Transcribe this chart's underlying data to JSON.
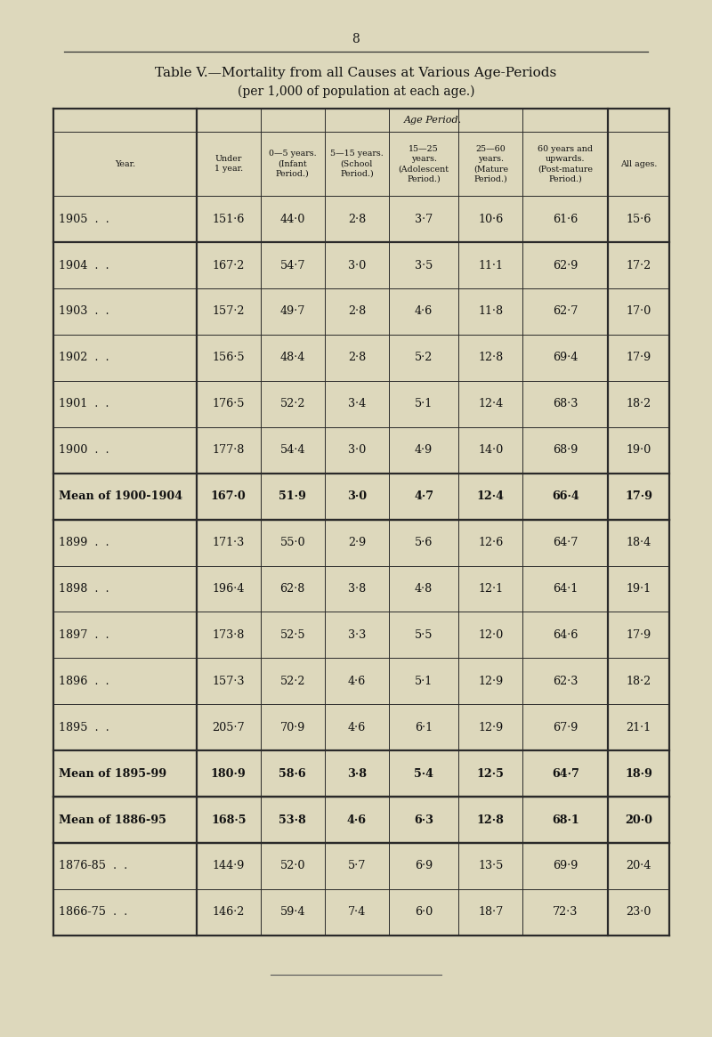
{
  "title_line1": "Table V.—Mortality from all Causes at Various Age-Periods",
  "title_line2": "(per 1,000 of population at each age.)",
  "page_number": "8",
  "bg_color": "#ddd8bc",
  "table_bg": "#e2ddc8",
  "rows": [
    {
      "year": "1905  .  .",
      "under1": "151·6",
      "y0_5": "44·0",
      "y5_15": "2·8",
      "y15_25": "3·7",
      "y25_60": "10·6",
      "y60": "61·6",
      "all": "15·6",
      "bold": false,
      "sep_above": "thick",
      "sep_below": "thin"
    },
    {
      "year": "1904  .  .",
      "under1": "167·2",
      "y0_5": "54·7",
      "y5_15": "3·0",
      "y15_25": "3·5",
      "y25_60": "11·1",
      "y60": "62·9",
      "all": "17·2",
      "bold": false,
      "sep_above": "thick",
      "sep_below": "thin"
    },
    {
      "year": "1903  .  .",
      "under1": "157·2",
      "y0_5": "49·7",
      "y5_15": "2·8",
      "y15_25": "4·6",
      "y25_60": "11·8",
      "y60": "62·7",
      "all": "17·0",
      "bold": false,
      "sep_above": "thin",
      "sep_below": "thin"
    },
    {
      "year": "1902  .  .",
      "under1": "156·5",
      "y0_5": "48·4",
      "y5_15": "2·8",
      "y15_25": "5·2",
      "y25_60": "12·8",
      "y60": "69·4",
      "all": "17·9",
      "bold": false,
      "sep_above": "thin",
      "sep_below": "thin"
    },
    {
      "year": "1901  .  .",
      "under1": "176·5",
      "y0_5": "52·2",
      "y5_15": "3·4",
      "y15_25": "5·1",
      "y25_60": "12·4",
      "y60": "68·3",
      "all": "18·2",
      "bold": false,
      "sep_above": "thin",
      "sep_below": "thin"
    },
    {
      "year": "1900  .  .",
      "under1": "177·8",
      "y0_5": "54·4",
      "y5_15": "3·0",
      "y15_25": "4·9",
      "y25_60": "14·0",
      "y60": "68·9",
      "all": "19·0",
      "bold": false,
      "sep_above": "thin",
      "sep_below": "thin"
    },
    {
      "year": "Mean of 1900-1904",
      "under1": "167·0",
      "y0_5": "51·9",
      "y5_15": "3·0",
      "y15_25": "4·7",
      "y25_60": "12·4",
      "y60": "66·4",
      "all": "17·9",
      "bold": true,
      "sep_above": "thick",
      "sep_below": "thick"
    },
    {
      "year": "1899  .  .",
      "under1": "171·3",
      "y0_5": "55·0",
      "y5_15": "2·9",
      "y15_25": "5·6",
      "y25_60": "12·6",
      "y60": "64·7",
      "all": "18·4",
      "bold": false,
      "sep_above": "thick",
      "sep_below": "thin"
    },
    {
      "year": "1898  .  .",
      "under1": "196·4",
      "y0_5": "62·8",
      "y5_15": "3·8",
      "y15_25": "4·8",
      "y25_60": "12·1",
      "y60": "64·1",
      "all": "19·1",
      "bold": false,
      "sep_above": "thin",
      "sep_below": "thin"
    },
    {
      "year": "1897  .  .",
      "under1": "173·8",
      "y0_5": "52·5",
      "y5_15": "3·3",
      "y15_25": "5·5",
      "y25_60": "12·0",
      "y60": "64·6",
      "all": "17·9",
      "bold": false,
      "sep_above": "thin",
      "sep_below": "thin"
    },
    {
      "year": "1896  .  .",
      "under1": "157·3",
      "y0_5": "52·2",
      "y5_15": "4·6",
      "y15_25": "5·1",
      "y25_60": "12·9",
      "y60": "62·3",
      "all": "18·2",
      "bold": false,
      "sep_above": "thin",
      "sep_below": "thin"
    },
    {
      "year": "1895  .  .",
      "under1": "205·7",
      "y0_5": "70·9",
      "y5_15": "4·6",
      "y15_25": "6·1",
      "y25_60": "12·9",
      "y60": "67·9",
      "all": "21·1",
      "bold": false,
      "sep_above": "thin",
      "sep_below": "thin"
    },
    {
      "year": "Mean of 1895-99",
      "under1": "180·9",
      "y0_5": "58·6",
      "y5_15": "3·8",
      "y15_25": "5·4",
      "y25_60": "12·5",
      "y60": "64·7",
      "all": "18·9",
      "bold": true,
      "sep_above": "thick",
      "sep_below": "thick"
    },
    {
      "year": "Mean of 1886-95",
      "under1": "168·5",
      "y0_5": "53·8",
      "y5_15": "4·6",
      "y15_25": "6·3",
      "y25_60": "12·8",
      "y60": "68·1",
      "all": "20·0",
      "bold": true,
      "sep_above": "thick",
      "sep_below": "thick"
    },
    {
      "year": "1876-85  .  .",
      "under1": "144·9",
      "y0_5": "52·0",
      "y5_15": "5·7",
      "y15_25": "6·9",
      "y25_60": "13·5",
      "y60": "69·9",
      "all": "20·4",
      "bold": false,
      "sep_above": "thick",
      "sep_below": "thin"
    },
    {
      "year": "1866-75  .  .",
      "under1": "146·2",
      "y0_5": "59·4",
      "y5_15": "7·4",
      "y15_25": "6·0",
      "y25_60": "18·7",
      "y60": "72·3",
      "all": "23·0",
      "bold": false,
      "sep_above": "thin",
      "sep_below": "none"
    }
  ]
}
